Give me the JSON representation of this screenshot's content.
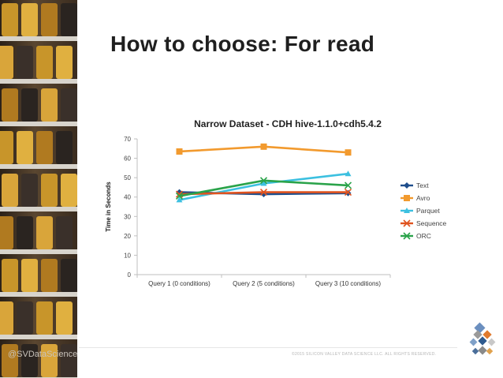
{
  "slide": {
    "title": "How to choose: For read",
    "watermark": "@SVDataScience",
    "copyright": "©2015 SILICON VALLEY DATA SCIENCE LLC. ALL RIGHTS RESERVED."
  },
  "chart_data": {
    "type": "line",
    "title": "Narrow Dataset - CDH hive-1.1.0+cdh5.4.2",
    "xlabel": "",
    "ylabel": "Time in Seconds",
    "ylim": [
      0,
      70
    ],
    "yticks": [
      0,
      10,
      20,
      30,
      40,
      50,
      60,
      70
    ],
    "grid": false,
    "legend_position": "right",
    "categories": [
      "Query 1 (0 conditions)",
      "Query 2 (5 conditions)",
      "Query 3 (10 conditions)"
    ],
    "series": [
      {
        "name": "Text",
        "values": [
          42.5,
          41.5,
          42
        ],
        "color": "#1f4e8c",
        "marker": "diamond"
      },
      {
        "name": "Avro",
        "values": [
          63.5,
          66,
          63
        ],
        "color": "#f29a2e",
        "marker": "square"
      },
      {
        "name": "Parquet",
        "values": [
          38.5,
          47,
          52
        ],
        "color": "#3cc0e0",
        "marker": "triangle"
      },
      {
        "name": "Sequence",
        "values": [
          41.5,
          42.5,
          42.5
        ],
        "color": "#e0531f",
        "marker": "x"
      },
      {
        "name": "ORC",
        "values": [
          40.5,
          48.5,
          46
        ],
        "color": "#2aa34a",
        "marker": "x"
      }
    ]
  }
}
